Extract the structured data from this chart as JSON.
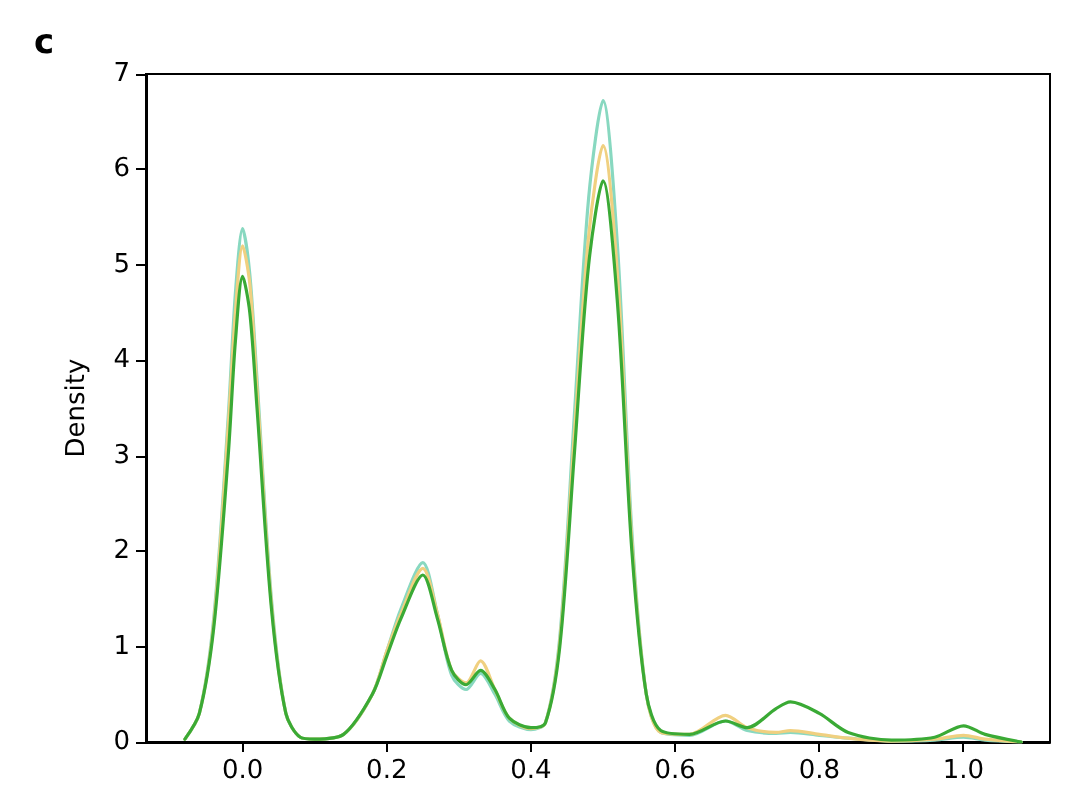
{
  "chart_data": {
    "type": "line",
    "title": "c",
    "ylabel": "Density",
    "xlim": [
      -0.134,
      1.12
    ],
    "ylim": [
      0,
      7
    ],
    "xticks": [
      {
        "value": 0,
        "label": "0.0"
      },
      {
        "value": 0.2,
        "label": "0.2"
      },
      {
        "value": 0.4,
        "label": "0.4"
      },
      {
        "value": 0.6,
        "label": "0.6"
      },
      {
        "value": 0.8,
        "label": "0.8"
      },
      {
        "value": 1,
        "label": "1.0"
      }
    ],
    "yticks": [
      0,
      1,
      2,
      3,
      4,
      5,
      6,
      7
    ],
    "grid": false,
    "marker": "none",
    "line_style": "solid",
    "x": [
      -0.08,
      -0.06,
      -0.04,
      -0.02,
      -0.01,
      0,
      0.01,
      0.02,
      0.04,
      0.06,
      0.08,
      0.1,
      0.14,
      0.18,
      0.2,
      0.22,
      0.25,
      0.27,
      0.29,
      0.31,
      0.33,
      0.35,
      0.37,
      0.4,
      0.42,
      0.44,
      0.46,
      0.48,
      0.5,
      0.52,
      0.54,
      0.56,
      0.58,
      0.62,
      0.67,
      0.7,
      0.74,
      0.76,
      0.8,
      0.84,
      0.9,
      0.96,
      1.0,
      1.03,
      1.08
    ],
    "series": [
      {
        "color": "#88d8c0",
        "values": [
          0.03,
          0.3,
          1.3,
          3.4,
          4.7,
          5.38,
          4.9,
          3.8,
          1.5,
          0.3,
          0.05,
          0.03,
          0.08,
          0.5,
          0.95,
          1.4,
          1.88,
          1.35,
          0.7,
          0.55,
          0.72,
          0.5,
          0.22,
          0.13,
          0.2,
          1.1,
          3.4,
          5.7,
          6.72,
          5.2,
          2.2,
          0.5,
          0.1,
          0.07,
          0.22,
          0.12,
          0.09,
          0.1,
          0.07,
          0.04,
          0.01,
          0.02,
          0.05,
          0.02,
          0.0
        ]
      },
      {
        "color": "#f0d080",
        "values": [
          0.03,
          0.3,
          1.25,
          3.3,
          4.5,
          5.2,
          4.8,
          3.7,
          1.45,
          0.3,
          0.05,
          0.03,
          0.08,
          0.5,
          0.95,
          1.35,
          1.82,
          1.35,
          0.75,
          0.62,
          0.85,
          0.55,
          0.25,
          0.14,
          0.2,
          1.05,
          3.2,
          5.3,
          6.25,
          4.9,
          2.1,
          0.5,
          0.1,
          0.08,
          0.28,
          0.15,
          0.1,
          0.12,
          0.08,
          0.04,
          0.01,
          0.03,
          0.07,
          0.03,
          0.0
        ]
      },
      {
        "color": "#3aaa35",
        "values": [
          0.03,
          0.3,
          1.2,
          3.0,
          4.2,
          4.88,
          4.5,
          3.5,
          1.4,
          0.3,
          0.05,
          0.03,
          0.08,
          0.5,
          0.9,
          1.3,
          1.75,
          1.3,
          0.75,
          0.6,
          0.75,
          0.55,
          0.25,
          0.15,
          0.2,
          1.0,
          3.0,
          5.0,
          5.88,
          4.6,
          2.0,
          0.5,
          0.12,
          0.08,
          0.22,
          0.15,
          0.35,
          0.42,
          0.3,
          0.1,
          0.02,
          0.05,
          0.17,
          0.08,
          0.0
        ]
      }
    ]
  }
}
